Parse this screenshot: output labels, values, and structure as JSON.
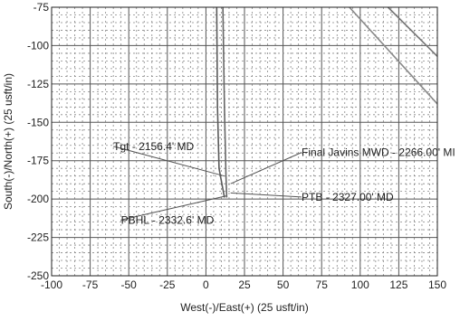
{
  "chart_data": {
    "type": "line",
    "title": "",
    "xlabel": "West(-)/East(+) (25 usft/in)",
    "ylabel": "South(-)/North(+) (25 usft/in)",
    "xlim": [
      -100,
      150
    ],
    "ylim": [
      -250,
      -75
    ],
    "x_ticks": [
      -100,
      -75,
      -50,
      -25,
      0,
      25,
      50,
      75,
      100,
      125,
      150
    ],
    "y_ticks": [
      -75,
      -100,
      -125,
      -150,
      -175,
      -200,
      -225,
      -250
    ],
    "x_tick_labels": [
      "-100",
      "-75",
      "-50",
      "-25",
      "0",
      "25",
      "50",
      "75",
      "100",
      "125",
      "150"
    ],
    "y_tick_labels": [
      "-75",
      "-100",
      "-125",
      "-150",
      "-175",
      "-200",
      "-225",
      "-250"
    ],
    "grid": true,
    "series": [
      {
        "color": "#5a5a5a",
        "x": [
          7,
          7.5,
          8.5,
          12
        ],
        "y": [
          -75,
          -140,
          -180,
          -199
        ]
      },
      {
        "color": "#666666",
        "x": [
          11,
          12,
          13,
          13.5
        ],
        "y": [
          -75,
          -140,
          -185,
          -199
        ]
      },
      {
        "color": "#777777",
        "x": [
          118,
          150
        ],
        "y": [
          -75,
          -107
        ]
      },
      {
        "color": "#888888",
        "x": [
          93,
          150
        ],
        "y": [
          -75,
          -138
        ]
      }
    ],
    "annotations": [
      {
        "text": "Tgt - 2156.4' MD",
        "at": [
          -60,
          -168
        ],
        "target": [
          12,
          -185
        ]
      },
      {
        "text": "Final Javins MWD - 2266.00' MI",
        "at": [
          62,
          -172
        ],
        "target": [
          16,
          -190
        ]
      },
      {
        "text": "PTB - 2327.00' MD",
        "at": [
          62,
          -201
        ],
        "target": [
          16,
          -196
        ]
      },
      {
        "text": "PBHL - 2332.6' MD",
        "at": [
          -55,
          -216
        ],
        "target": [
          13,
          -198
        ]
      }
    ]
  }
}
